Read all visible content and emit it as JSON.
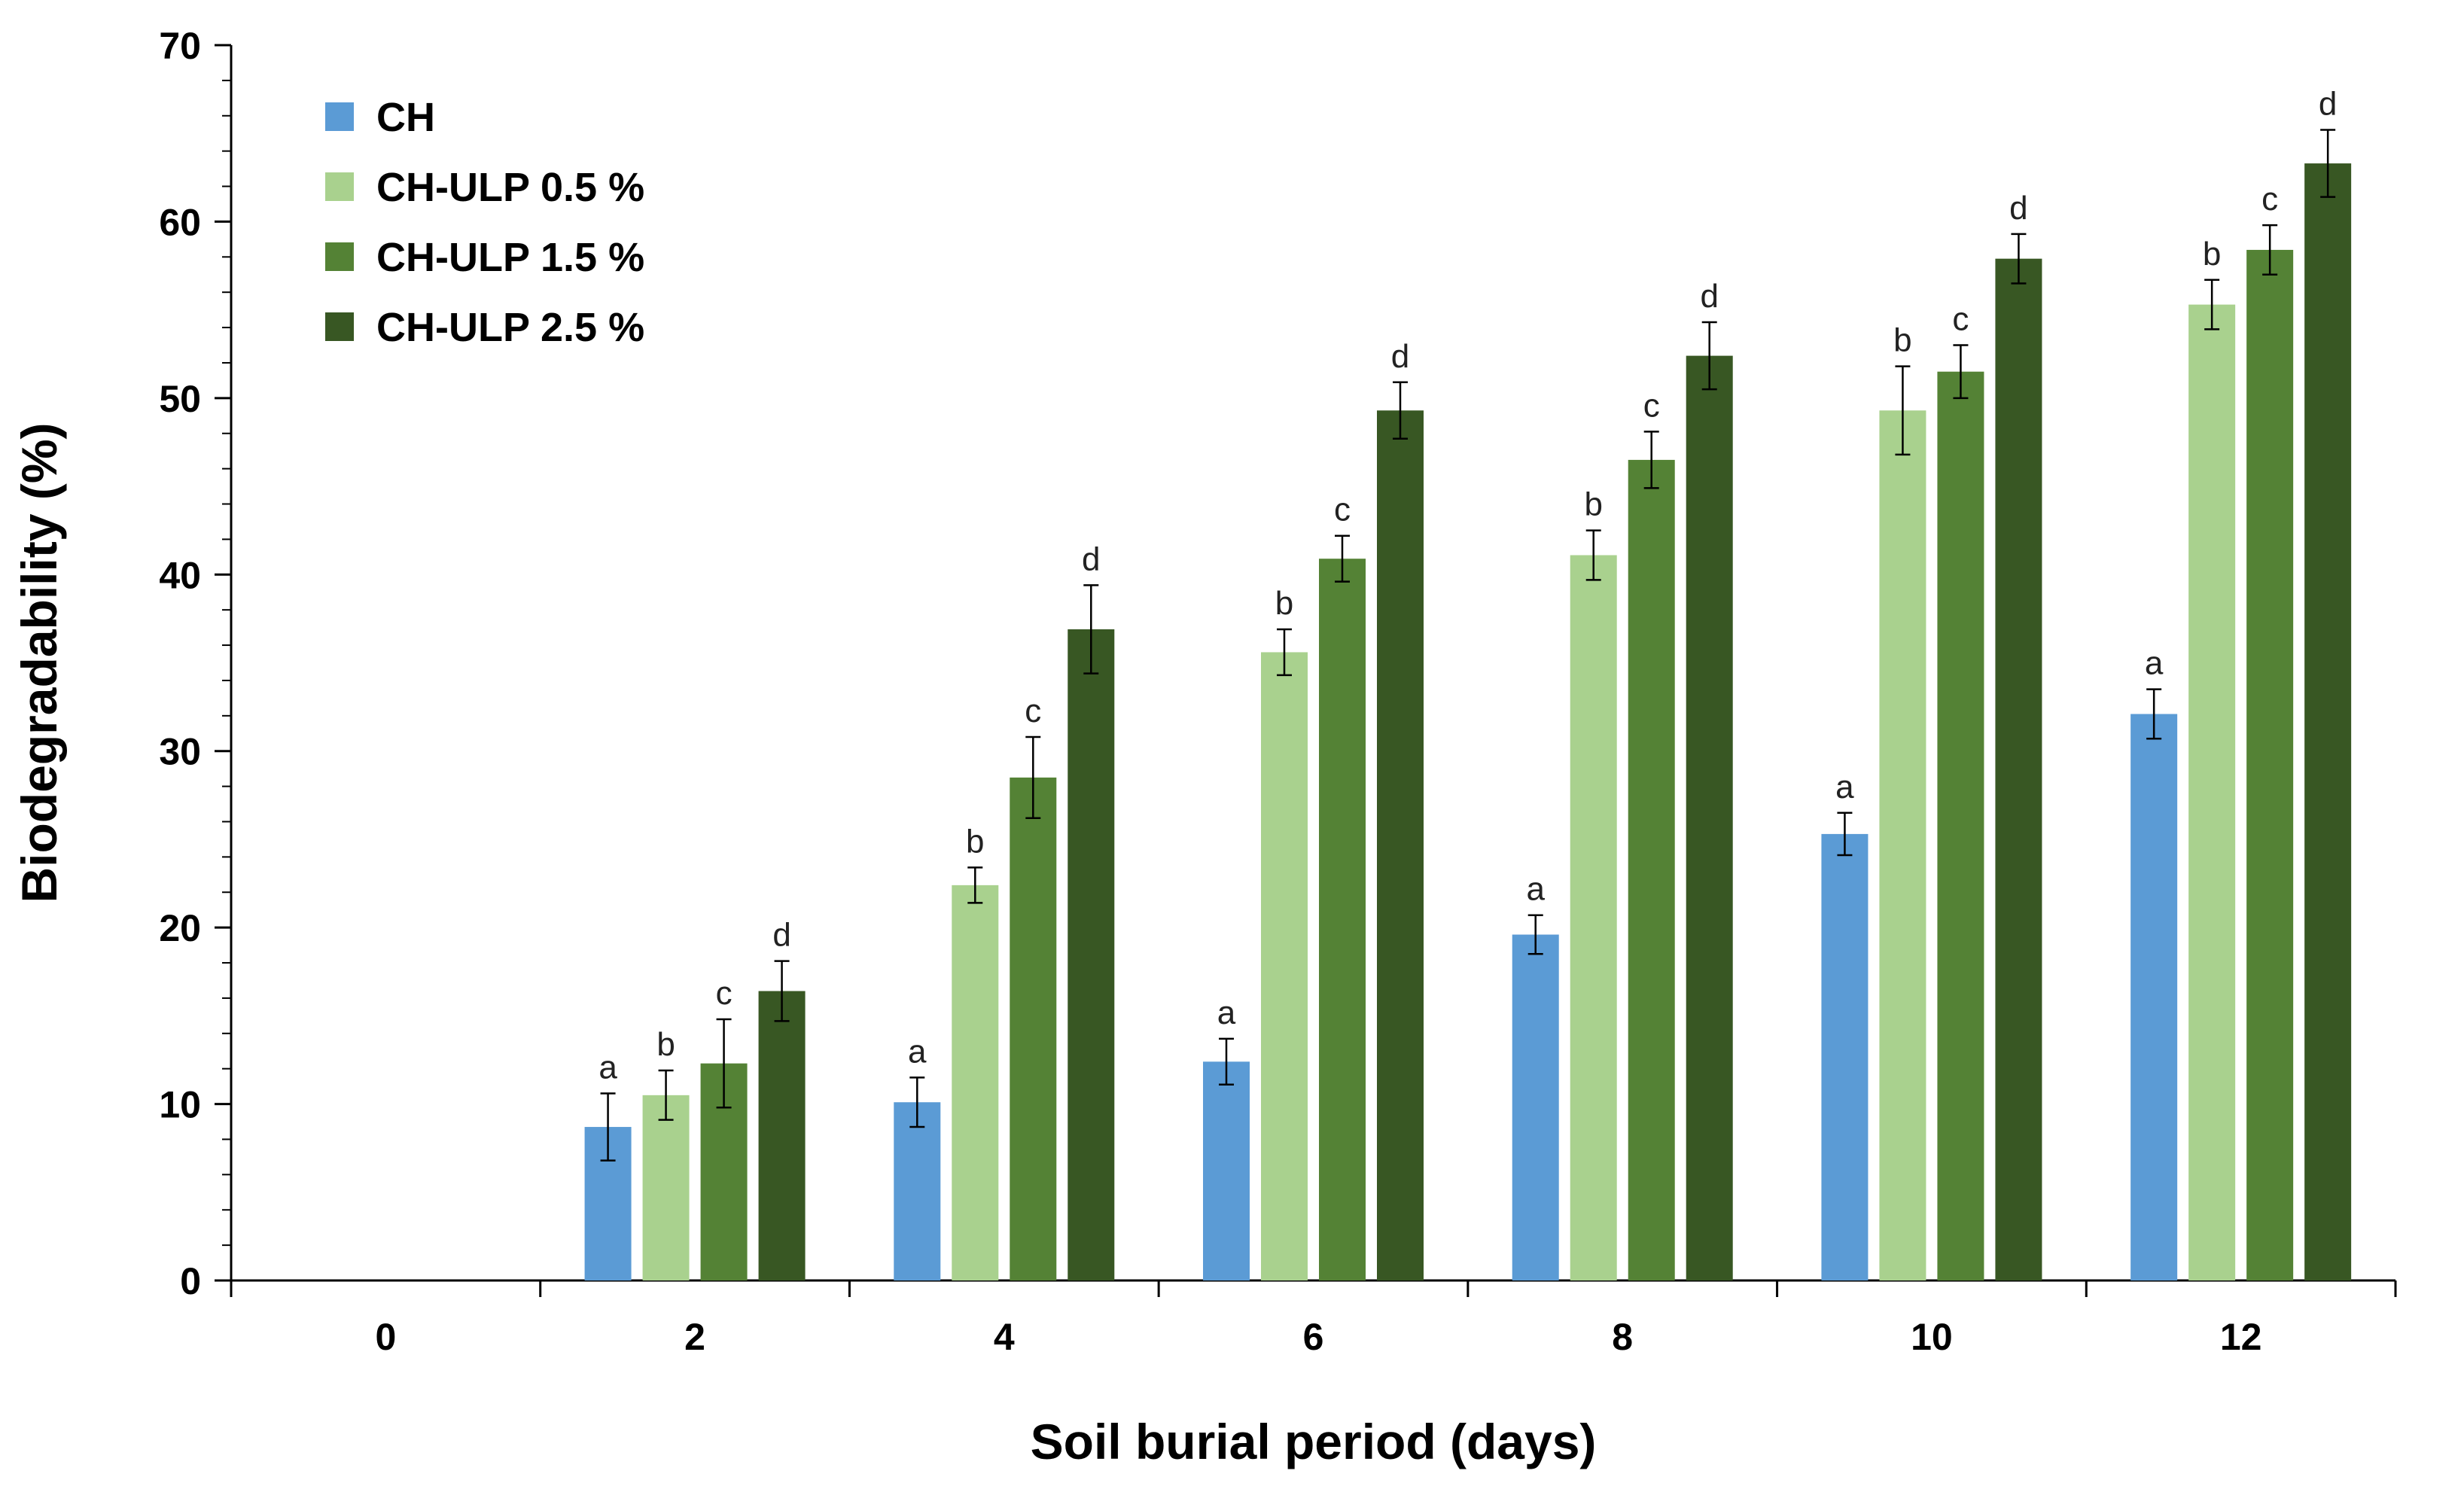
{
  "chart_data": {
    "type": "bar",
    "title": "",
    "xlabel": "Soil burial period (days)",
    "ylabel": "Biodegradability (%)",
    "ylim": [
      0,
      70
    ],
    "yticks": [
      "0",
      "10",
      "20",
      "30",
      "40",
      "50",
      "60",
      "70"
    ],
    "categories": [
      "0",
      "2",
      "4",
      "6",
      "8",
      "10",
      "12"
    ],
    "grid": false,
    "legend_position": "top-left",
    "series": [
      {
        "name": "CH",
        "color": "#5b9bd5",
        "values": [
          0,
          8.7,
          10.1,
          12.4,
          19.6,
          25.3,
          32.1
        ],
        "errors": [
          0,
          1.9,
          1.4,
          1.3,
          1.1,
          1.2,
          1.4
        ],
        "letters": [
          "",
          "a",
          "a",
          "a",
          "a",
          "a",
          "a"
        ]
      },
      {
        "name": "CH-ULP 0.5 %",
        "color": "#a9d18e",
        "values": [
          0,
          10.5,
          22.4,
          35.6,
          41.1,
          49.3,
          55.3
        ],
        "errors": [
          0,
          1.4,
          1.0,
          1.3,
          1.4,
          2.5,
          1.4
        ],
        "letters": [
          "",
          "b",
          "b",
          "b",
          "b",
          "b",
          "b"
        ]
      },
      {
        "name": "CH-ULP 1.5 %",
        "color": "#548235",
        "values": [
          0,
          12.3,
          28.5,
          40.9,
          46.5,
          51.5,
          58.4
        ],
        "errors": [
          0,
          2.5,
          2.3,
          1.3,
          1.6,
          1.5,
          1.4
        ],
        "letters": [
          "",
          "c",
          "c",
          "c",
          "c",
          "c",
          "c"
        ]
      },
      {
        "name": "CH-ULP 2.5 %",
        "color": "#385723",
        "values": [
          0,
          16.4,
          36.9,
          49.3,
          52.4,
          57.9,
          63.3
        ],
        "errors": [
          0,
          1.7,
          2.5,
          1.6,
          1.9,
          1.4,
          1.9
        ],
        "letters": [
          "",
          "d",
          "d",
          "d",
          "d",
          "d",
          "d"
        ]
      }
    ]
  }
}
